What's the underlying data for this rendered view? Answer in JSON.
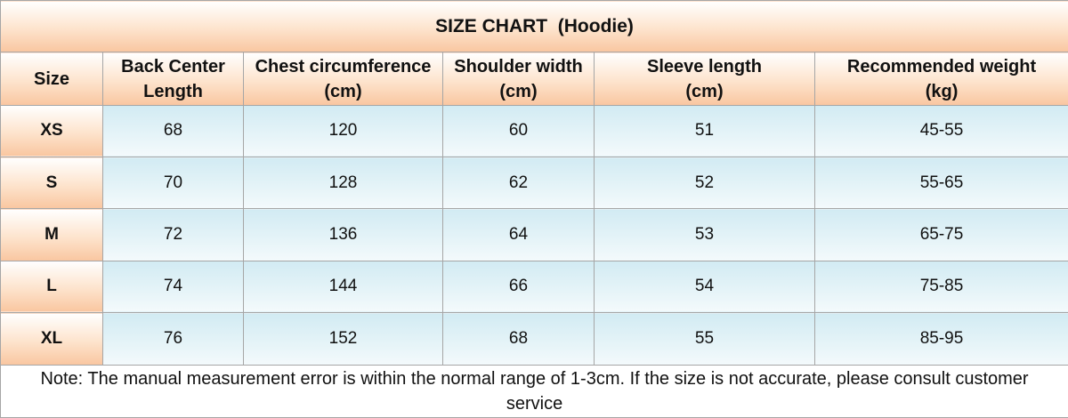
{
  "title": "SIZE CHART  (Hoodie)",
  "header": [
    [
      "Size"
    ],
    [
      "Back Center",
      "Length"
    ],
    [
      "Chest circumference",
      "(cm)"
    ],
    [
      "Shoulder width",
      "(cm)"
    ],
    [
      "Sleeve length",
      "(cm)"
    ],
    [
      "Recommended weight",
      "(kg)"
    ]
  ],
  "rows": [
    [
      "XS",
      68,
      120,
      60,
      51,
      "45-55"
    ],
    [
      "S",
      70,
      128,
      62,
      52,
      "55-65"
    ],
    [
      "M",
      72,
      136,
      64,
      53,
      "65-75"
    ],
    [
      "L",
      74,
      144,
      66,
      54,
      "75-85"
    ],
    [
      "XL",
      76,
      152,
      68,
      55,
      "85-95"
    ]
  ],
  "note": "Note: The manual measurement error is within the normal range of 1-3cm. If the size is not accurate, please consult customer service"
}
